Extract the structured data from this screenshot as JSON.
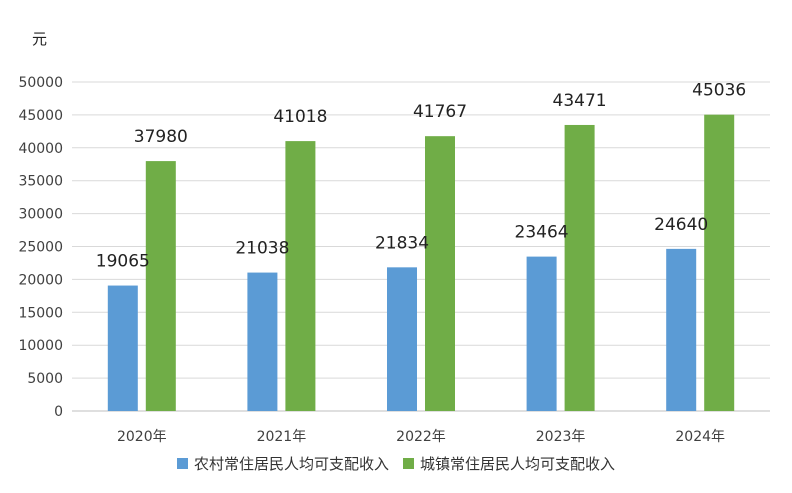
{
  "chart_data": {
    "type": "bar",
    "unit_label": "元",
    "categories": [
      "2020年",
      "2021年",
      "2022年",
      "2023年",
      "2024年"
    ],
    "series": [
      {
        "name": "农村常住居民人均可支配收入",
        "color": "#5B9BD5",
        "values": [
          19065,
          21038,
          21834,
          23464,
          24640
        ]
      },
      {
        "name": "城镇常住居民人均可支配收入",
        "color": "#70AD47",
        "values": [
          37980,
          41018,
          41767,
          43471,
          45036
        ]
      }
    ],
    "ylim": [
      0,
      50000
    ],
    "yticks": [
      0,
      5000,
      10000,
      15000,
      20000,
      25000,
      30000,
      35000,
      40000,
      45000,
      50000
    ],
    "grid": true,
    "data_labels": true,
    "legend_position": "bottom"
  }
}
